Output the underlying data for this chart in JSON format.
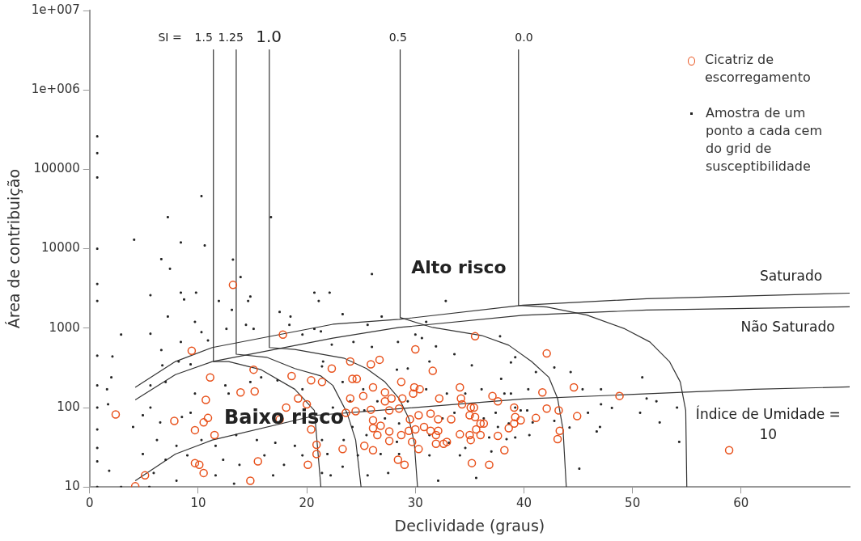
{
  "chart_data": {
    "type": "scatter",
    "xlabel": "Declividade (graus)",
    "ylabel": "Área de contribuição",
    "xlim": [
      0,
      70
    ],
    "xticks": [
      0,
      10,
      20,
      30,
      40,
      50,
      60
    ],
    "ylim": [
      10,
      10000000
    ],
    "yticks": [
      10,
      100,
      1000,
      10000,
      100000,
      {
        "value": 1000000,
        "label": "1e+006"
      },
      {
        "value": 10000000,
        "label": "1e+007"
      }
    ],
    "log": "y",
    "grid": false,
    "legend": "top right",
    "series": [
      {
        "name": "Cicatriz de escorregamento",
        "color": "#e8501a",
        "marker": "circle",
        "x": [
          2.4,
          4.2,
          5.1,
          9.4,
          9.7,
          9.7,
          10.1,
          10.5,
          10.5,
          10.7,
          10.9,
          11.1,
          11.5,
          7.8,
          13.2,
          13.9,
          15.1,
          15.2,
          15.5,
          14.8,
          17.8,
          17.5,
          18.1,
          18.6,
          19.2,
          20.0,
          20.4,
          20.4,
          20.1,
          20.9,
          20.9,
          21.4,
          22.3,
          23.3,
          23.6,
          24.0,
          24.0,
          24.2,
          24.6,
          24.5,
          25.2,
          25.3,
          25.9,
          25.9,
          26.1,
          26.1,
          26.1,
          26.1,
          26.5,
          26.7,
          26.8,
          27.2,
          27.2,
          27.6,
          27.6,
          27.6,
          27.8,
          28.4,
          28.5,
          28.7,
          28.7,
          28.8,
          29.0,
          29.4,
          29.5,
          29.7,
          29.8,
          29.9,
          30.0,
          30.0,
          30.3,
          30.3,
          30.4,
          30.8,
          31.4,
          31.4,
          31.6,
          31.9,
          31.9,
          32.1,
          32.1,
          32.2,
          32.6,
          32.9,
          33.3,
          34.1,
          34.1,
          34.2,
          34.3,
          35.0,
          35.0,
          35.1,
          35.1,
          35.2,
          35.4,
          35.5,
          35.5,
          35.6,
          36.0,
          36.0,
          36.3,
          36.8,
          37.1,
          37.6,
          37.6,
          38.2,
          38.6,
          39.1,
          39.1,
          39.2,
          39.7,
          41.1,
          41.7,
          42.1,
          42.1,
          43.1,
          43.2,
          43.3,
          44.6,
          44.9,
          48.8,
          58.9
        ],
        "values": [
          82,
          10.2,
          14,
          520,
          52,
          20,
          19,
          15,
          65,
          125,
          74,
          240,
          45,
          68,
          3500,
          155,
          300,
          160,
          21,
          12,
          830,
          71,
          100,
          250,
          130,
          110,
          220,
          53,
          19,
          34,
          26,
          210,
          310,
          30,
          86,
          380,
          130,
          230,
          230,
          90,
          140,
          33,
          94,
          350,
          180,
          69,
          55,
          29,
          45,
          400,
          59,
          155,
          120,
          92,
          50,
          38,
          130,
          22,
          97,
          210,
          45,
          130,
          19,
          51,
          71,
          37,
          150,
          180,
          540,
          53,
          80,
          30,
          170,
          57,
          84,
          51,
          290,
          45,
          35,
          71,
          51,
          130,
          35,
          37,
          71,
          180,
          46,
          130,
          110,
          80,
          45,
          39,
          100,
          20,
          100,
          790,
          76,
          53,
          45,
          63,
          63,
          19,
          140,
          120,
          44,
          29,
          55,
          100,
          63,
          76,
          69,
          74,
          155,
          480,
          97,
          40,
          92,
          51,
          180,
          78,
          140,
          29
        ]
      },
      {
        "name": "Amostra de um ponto a cada cem do grid de susceptibilidade",
        "color": "#222222",
        "marker": "square",
        "x": [
          0.7,
          0.7,
          0.7,
          10.3,
          7.2,
          4.1,
          8.4,
          10.6,
          0.7,
          6.6,
          7.4,
          13.2,
          13.9,
          16.7,
          0.7,
          0.7,
          5.6,
          8.4,
          9.8,
          8.7,
          11.9,
          14.8,
          14.6,
          13.1,
          7.2,
          9.7,
          2.9,
          5.6,
          10.3,
          14.4,
          15.1,
          12.6,
          10.9,
          6.6,
          2.1,
          0.7,
          8.4,
          18.5,
          17.5,
          20.7,
          22.1,
          21.1,
          18.4,
          19.6,
          20.7,
          8.2,
          9.3,
          6.7,
          2.0,
          1.6,
          5.6,
          7.0,
          9.7,
          12.5,
          12.8,
          14.8,
          15.8,
          17.3,
          19.6,
          21.4,
          0.7,
          0.7,
          1.7,
          5.6,
          4.9,
          6.5,
          8.5,
          9.3,
          4.0,
          0.7,
          6.2,
          8.0,
          10.3,
          11.6,
          13.5,
          15.4,
          17.1,
          18.9,
          21.4,
          0.7,
          4.9,
          7.0,
          9.0,
          12.3,
          13.8,
          16.1,
          17.9,
          19.6,
          1.8,
          5.9,
          8.0,
          11.6,
          13.3,
          16.9,
          21.4,
          0.7,
          2.9,
          5.5,
          0.7,
          26.0,
          23.3,
          26.9,
          32.8,
          31.0,
          25.6,
          21.3,
          30.0,
          30.6,
          28.4,
          24.3,
          22.3,
          26.0,
          31.9,
          37.8,
          39.2,
          38.8,
          35.2,
          31.3,
          33.6,
          28.3,
          29.3,
          21.5,
          23.3,
          25.2,
          26.5,
          27.2,
          28.5,
          31.0,
          32.9,
          34.6,
          36.1,
          38.2,
          39.2,
          33.6,
          32.5,
          36.3,
          37.4,
          38.6,
          24.2,
          25.5,
          23.4,
          28.3,
          31.3,
          33.1,
          34.6,
          37.0,
          39.2,
          21.9,
          24.7,
          26.8,
          28.5,
          31.3,
          34.1,
          23.3,
          25.6,
          27.5,
          32.1,
          35.6,
          22.2,
          24.0,
          22.4,
          25.3,
          29.3,
          41.1,
          42.8,
          44.3,
          37.9,
          40.4,
          38.8,
          50.9,
          45.4,
          47.1,
          51.3,
          52.2,
          54.1,
          50.7,
          48.1,
          47.1,
          45.9,
          52.5,
          47.0,
          46.7,
          44.2,
          42.8,
          40.3,
          40.8,
          40.5,
          54.3,
          45.1,
          39.7,
          37.6,
          38.4,
          36.8
        ],
        "values": [
          260000,
          160000,
          79000,
          46000,
          25000,
          13000,
          12000,
          11000,
          10000,
          7400,
          5600,
          7300,
          4400,
          25000,
          3600,
          2200,
          2600,
          2800,
          2800,
          2300,
          2200,
          2500,
          2200,
          1700,
          1400,
          1200,
          830,
          850,
          890,
          1100,
          980,
          980,
          700,
          530,
          440,
          450,
          670,
          1400,
          1600,
          2800,
          2800,
          2200,
          1100,
          830,
          980,
          380,
          350,
          340,
          240,
          170,
          190,
          210,
          150,
          190,
          150,
          210,
          240,
          220,
          170,
          330,
          190,
          100,
          110,
          100,
          80,
          65,
          76,
          86,
          57,
          53,
          39,
          33,
          39,
          33,
          45,
          39,
          36,
          33,
          39,
          31,
          26,
          22,
          25,
          22,
          19,
          25,
          19,
          25,
          16,
          15,
          12,
          14,
          11,
          14,
          15,
          21,
          10,
          10,
          10,
          4800,
          1500,
          1400,
          2200,
          1200,
          1100,
          910,
          830,
          750,
          670,
          670,
          620,
          580,
          590,
          790,
          430,
          370,
          340,
          380,
          470,
          300,
          310,
          380,
          210,
          170,
          120,
          73,
          63,
          170,
          150,
          150,
          170,
          150,
          100,
          86,
          73,
          73,
          86,
          63,
          57,
          45,
          39,
          37,
          45,
          36,
          31,
          28,
          42,
          26,
          25,
          26,
          26,
          25,
          25,
          18,
          14,
          15,
          12,
          13,
          14,
          120,
          100,
          92,
          120,
          280,
          320,
          280,
          230,
          170,
          150,
          240,
          170,
          170,
          130,
          120,
          100,
          86,
          99,
          110,
          86,
          65,
          57,
          50,
          56,
          68,
          92,
          65,
          45,
          37,
          17,
          92,
          57,
          40,
          42
        ]
      },
      {
        "type": "line",
        "color": "#333333",
        "marker": "none",
        "x": [
          11.4,
          11.4,
          12.8,
          15.8,
          18.9,
          20.7,
          21.3
        ],
        "values": [
          3200000,
          380,
          380,
          300,
          170,
          92,
          10
        ]
      },
      {
        "type": "line",
        "color": "#333333",
        "marker": "none",
        "x": [
          13.5,
          13.5,
          16.3,
          18.9,
          21.3,
          22.4,
          23.7,
          24.5,
          25.0
        ],
        "values": [
          3200000,
          470,
          430,
          310,
          250,
          190,
          86,
          39,
          10
        ]
      },
      {
        "type": "line",
        "color": "#333333",
        "marker": "none",
        "x": [
          16.55,
          16.55,
          18.9,
          23.4,
          25.5,
          27.2,
          28.5,
          29.4,
          29.9,
          30.2
        ],
        "values": [
          3200000,
          570,
          540,
          420,
          310,
          210,
          130,
          73,
          36,
          10
        ]
      },
      {
        "type": "line",
        "color": "#333333",
        "marker": "none",
        "x": [
          28.6,
          28.6,
          31.6,
          36.1,
          38.6,
          40.7,
          42.3,
          43.1,
          43.6,
          43.9
        ],
        "values": [
          3200000,
          1360,
          1020,
          810,
          610,
          380,
          240,
          130,
          53,
          10
        ]
      },
      {
        "type": "line",
        "color": "#333333",
        "marker": "none",
        "x": [
          39.5,
          39.5,
          42.1,
          45.8,
          49.3,
          51.6,
          53.4,
          54.4,
          54.9,
          55.0
        ],
        "values": [
          3200000,
          1940,
          1850,
          1460,
          980,
          670,
          380,
          210,
          92,
          10
        ]
      },
      {
        "type": "line",
        "color": "#333333",
        "marker": "none",
        "x": [
          4.2,
          7.9,
          11.3,
          22.4,
          28.5,
          39.9,
          51.3,
          70
        ],
        "values": [
          180,
          380,
          570,
          1120,
          1290,
          1950,
          2350,
          2760
        ]
      },
      {
        "type": "line",
        "color": "#333333",
        "marker": "none",
        "x": [
          4.2,
          7.9,
          11.3,
          22.4,
          28.5,
          39.9,
          51.3,
          70
        ],
        "values": [
          125,
          260,
          380,
          750,
          1020,
          1450,
          1690,
          1860
        ]
      },
      {
        "type": "line",
        "color": "#333333",
        "marker": "none",
        "x": [
          4.2,
          7.9,
          11.3,
          20.9,
          39.9,
          48.8,
          61.2,
          70
        ],
        "values": [
          12,
          26,
          39,
          80,
          128,
          144,
          170,
          182
        ]
      }
    ],
    "annotations": [
      "SI =",
      "1.5",
      "1.25",
      "1.0",
      "0.5",
      "0.0",
      "Alto risco",
      "Baixo risco",
      "Saturado",
      "Não Saturado",
      "Índice de Umidade = 10"
    ]
  }
}
